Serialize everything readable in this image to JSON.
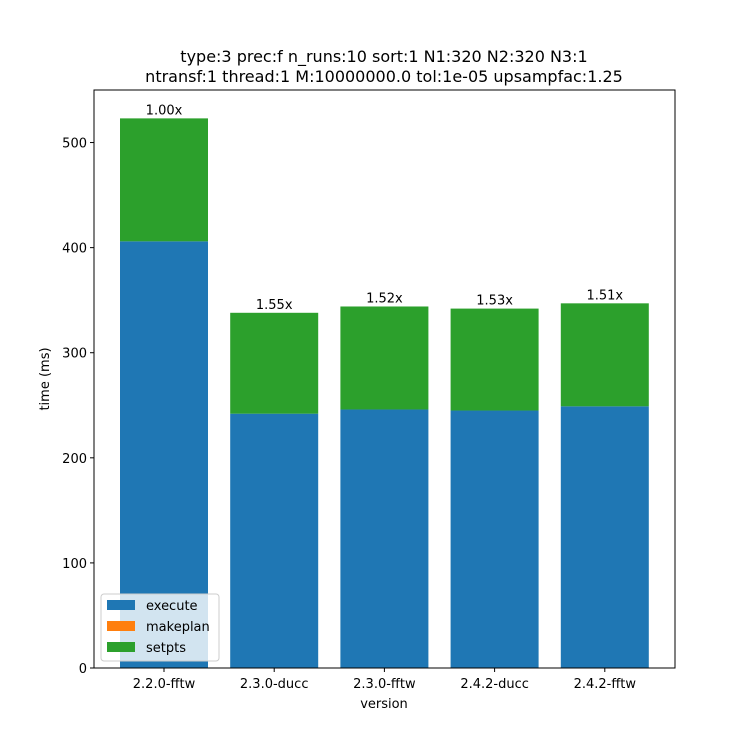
{
  "chart_data": {
    "type": "bar",
    "stacked": true,
    "title_lines": [
      "type:3 prec:f n_runs:10 sort:1 N1:320 N2:320 N3:1",
      "ntransf:1 thread:1 M:10000000.0 tol:1e-05 upsampfac:1.25"
    ],
    "xlabel": "version",
    "ylabel": "time (ms)",
    "categories": [
      "2.2.0-fftw",
      "2.3.0-ducc",
      "2.3.0-fftw",
      "2.4.2-ducc",
      "2.4.2-fftw"
    ],
    "ylim": [
      0,
      550
    ],
    "yticks": [
      0,
      100,
      200,
      300,
      400,
      500
    ],
    "series": [
      {
        "name": "execute",
        "color": "#1f77b4",
        "values": [
          406,
          242,
          246,
          245,
          249
        ]
      },
      {
        "name": "makeplan",
        "color": "#ff7f0e",
        "values": [
          0,
          0,
          0,
          0,
          0
        ]
      },
      {
        "name": "setpts",
        "color": "#2ca02c",
        "values": [
          117,
          96,
          98,
          97,
          98
        ]
      }
    ],
    "bar_labels": [
      "1.00x",
      "1.55x",
      "1.52x",
      "1.53x",
      "1.51x"
    ],
    "legend_position": "lower-left",
    "grid": false
  }
}
